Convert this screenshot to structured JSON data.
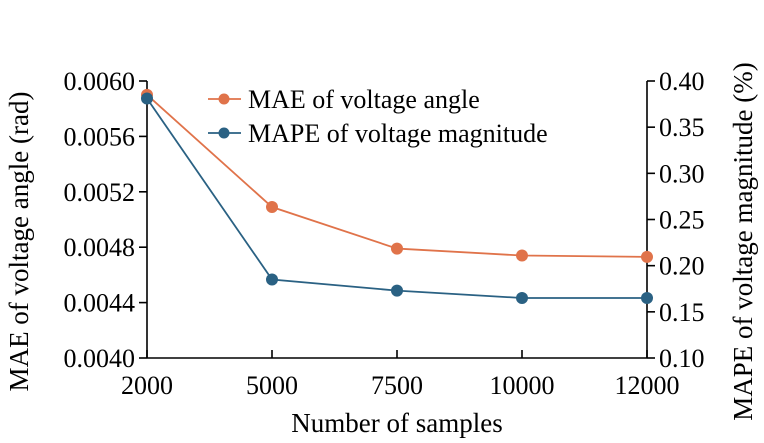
{
  "chart_data": {
    "type": "line",
    "xlabel": "Number of samples",
    "ylabel_left": "MAE of voltage angle (rad)",
    "ylabel_right": "MAPE of voltage magnitude (%)",
    "categories": [
      "2000",
      "5000",
      "7500",
      "10000",
      "12000"
    ],
    "y_left_ticks": [
      "0.0040",
      "0.0044",
      "0.0048",
      "0.0052",
      "0.0056",
      "0.0060"
    ],
    "y_right_ticks": [
      "0.10",
      "0.15",
      "0.20",
      "0.25",
      "0.30",
      "0.35",
      "0.40"
    ],
    "ylim_left": [
      0.004,
      0.006
    ],
    "ylim_right": [
      0.1,
      0.4
    ],
    "legend_position": "top-center",
    "grid": false,
    "series": [
      {
        "name": "MAE of voltage angle",
        "axis": "left",
        "color": "#E0734A",
        "values": [
          0.0059,
          0.00509,
          0.00479,
          0.00474,
          0.00473
        ]
      },
      {
        "name": "MAPE of voltage magnitude",
        "axis": "right",
        "color": "#2A6183",
        "values": [
          0.381,
          0.185,
          0.173,
          0.165,
          0.165
        ]
      }
    ]
  }
}
